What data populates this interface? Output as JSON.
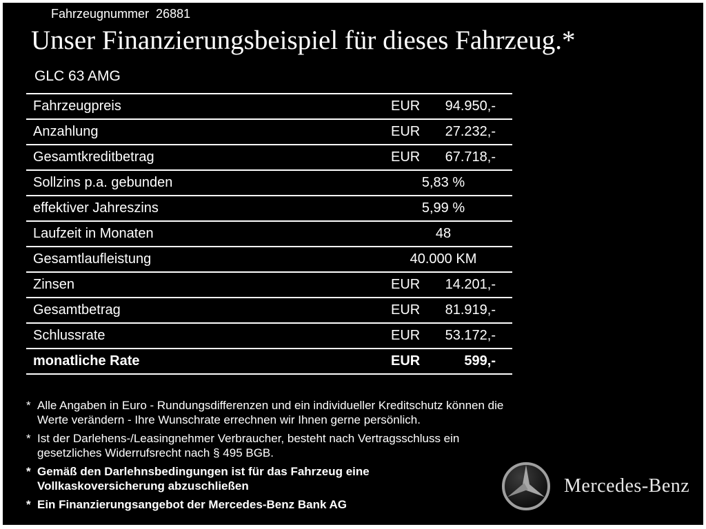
{
  "colors": {
    "background": "#000000",
    "text": "#ffffff",
    "frame": "#ffffff",
    "rule": "#ffffff",
    "logo_gray": "#9f9f9f"
  },
  "header": {
    "vehicle_number": "Fahrzeugnummer  26881",
    "title": "Unser Finanzierungsbeispiel für dieses Fahrzeug.*",
    "model": "GLC 63 AMG"
  },
  "finance_table": {
    "rows": [
      {
        "label": "Fahrzeugpreis",
        "currency": "EUR",
        "value": "94.950,-",
        "bold": false
      },
      {
        "label": "Anzahlung",
        "currency": "EUR",
        "value": "27.232,-",
        "bold": false
      },
      {
        "label": "Gesamtkreditbetrag",
        "currency": "EUR",
        "value": "67.718,-",
        "bold": false
      },
      {
        "label": "Sollzins p.a. gebunden",
        "currency": "",
        "value": "5,83 %",
        "bold": false
      },
      {
        "label": "effektiver Jahreszins",
        "currency": "",
        "value": "5,99 %",
        "bold": false
      },
      {
        "label": "Laufzeit in Monaten",
        "currency": "",
        "value": "48",
        "bold": false
      },
      {
        "label": "Gesamtlaufleistung",
        "currency": "",
        "value": "40.000 KM",
        "bold": false
      },
      {
        "label": "Zinsen",
        "currency": "EUR",
        "value": "14.201,-",
        "bold": false
      },
      {
        "label": "Gesamtbetrag",
        "currency": "EUR",
        "value": "81.919,-",
        "bold": false
      },
      {
        "label": "Schlussrate",
        "currency": "EUR",
        "value": "53.172,-",
        "bold": false
      },
      {
        "label": "monatliche Rate",
        "currency": "EUR",
        "value": "599,-",
        "bold": true
      }
    ]
  },
  "footnotes": [
    {
      "marker": "*",
      "bold": false,
      "lines": [
        "Alle Angaben in Euro - Rundungsdifferenzen und ein individueller Kreditschutz können die",
        "Werte verändern - Ihre Wunschrate errechnen wir Ihnen gerne persönlich."
      ]
    },
    {
      "marker": "*",
      "bold": false,
      "lines": [
        "Ist der Darlehens-/Leasingnehmer Verbraucher, besteht nach Vertragsschluss ein",
        "gesetzliches Widerrufsrecht nach § 495 BGB."
      ]
    },
    {
      "marker": "*",
      "bold": true,
      "lines": [
        "Gemäß den Darlehnsbedingungen ist für das Fahrzeug eine",
        "Vollkaskoversicherung abzuschließen"
      ]
    },
    {
      "marker": "*",
      "bold": true,
      "lines": [
        "Ein Finanzierungsangebot der Mercedes-Benz Bank AG"
      ]
    }
  ],
  "brand": {
    "logo": "mercedes-star-icon",
    "name": "Mercedes-Benz"
  }
}
